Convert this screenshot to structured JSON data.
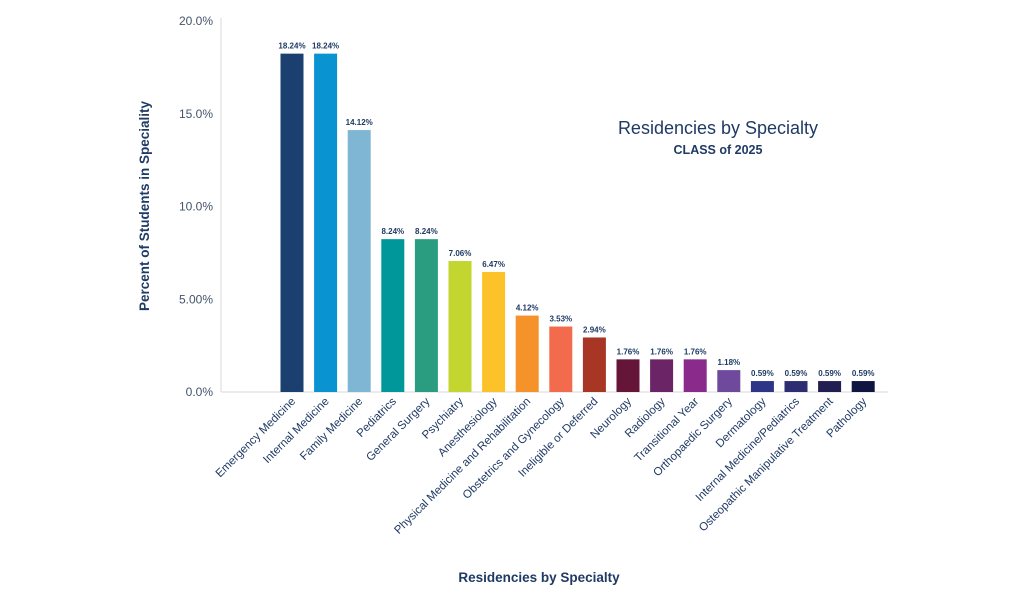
{
  "chart_data": {
    "type": "bar",
    "title": "Residencies by Specialty",
    "subtitle": "CLASS of 2025",
    "xlabel": "Residencies by Specialty",
    "ylabel": "Percent of Students in Speciality",
    "ylim": [
      0,
      20
    ],
    "yticks": [
      0,
      5,
      10,
      15,
      20
    ],
    "ytick_labels": [
      "0.0%",
      "5.00%",
      "10.0%",
      "15.0%",
      "20.0%"
    ],
    "grid": false,
    "categories": [
      "Emergency Medicine",
      "Internal Medicine",
      "Family Medicine",
      "Pediatrics",
      "General Surgery",
      "Psychiatry",
      "Anesthesiology",
      "Physical Medicine and Rehabilitation",
      "Obstetrics and Gynecology",
      "Ineligible or Deferred",
      "Neurology",
      "Radiology",
      "Transitional Year",
      "Orthopaedic Surgery",
      "Dermatology",
      "Internal Medicine/Pediatrics",
      "Osteopathic Manipulative Treatment",
      "Pathology"
    ],
    "values": [
      18.24,
      18.24,
      14.12,
      8.24,
      8.24,
      7.06,
      6.47,
      4.12,
      3.53,
      2.94,
      1.76,
      1.76,
      1.76,
      1.18,
      0.59,
      0.59,
      0.59,
      0.59
    ],
    "data_labels": [
      "18.24%",
      "18.24%",
      "14.12%",
      "8.24%",
      "8.24%",
      "7.06%",
      "6.47%",
      "4.12%",
      "3.53%",
      "2.94%",
      "1.76%",
      "1.76%",
      "1.76%",
      "1.18%",
      "0.59%",
      "0.59%",
      "0.59%",
      "0.59%"
    ],
    "colors": [
      "#1b3f6e",
      "#0a93d1",
      "#7fb6d3",
      "#00979a",
      "#2a9d80",
      "#c2d62f",
      "#fdc12a",
      "#f5922a",
      "#f26b4d",
      "#a83624",
      "#651538",
      "#6b2566",
      "#8a2a8b",
      "#6f4a9c",
      "#2c3586",
      "#2f2d72",
      "#221e51",
      "#0f1540"
    ],
    "text_color": "#1f3a64"
  }
}
